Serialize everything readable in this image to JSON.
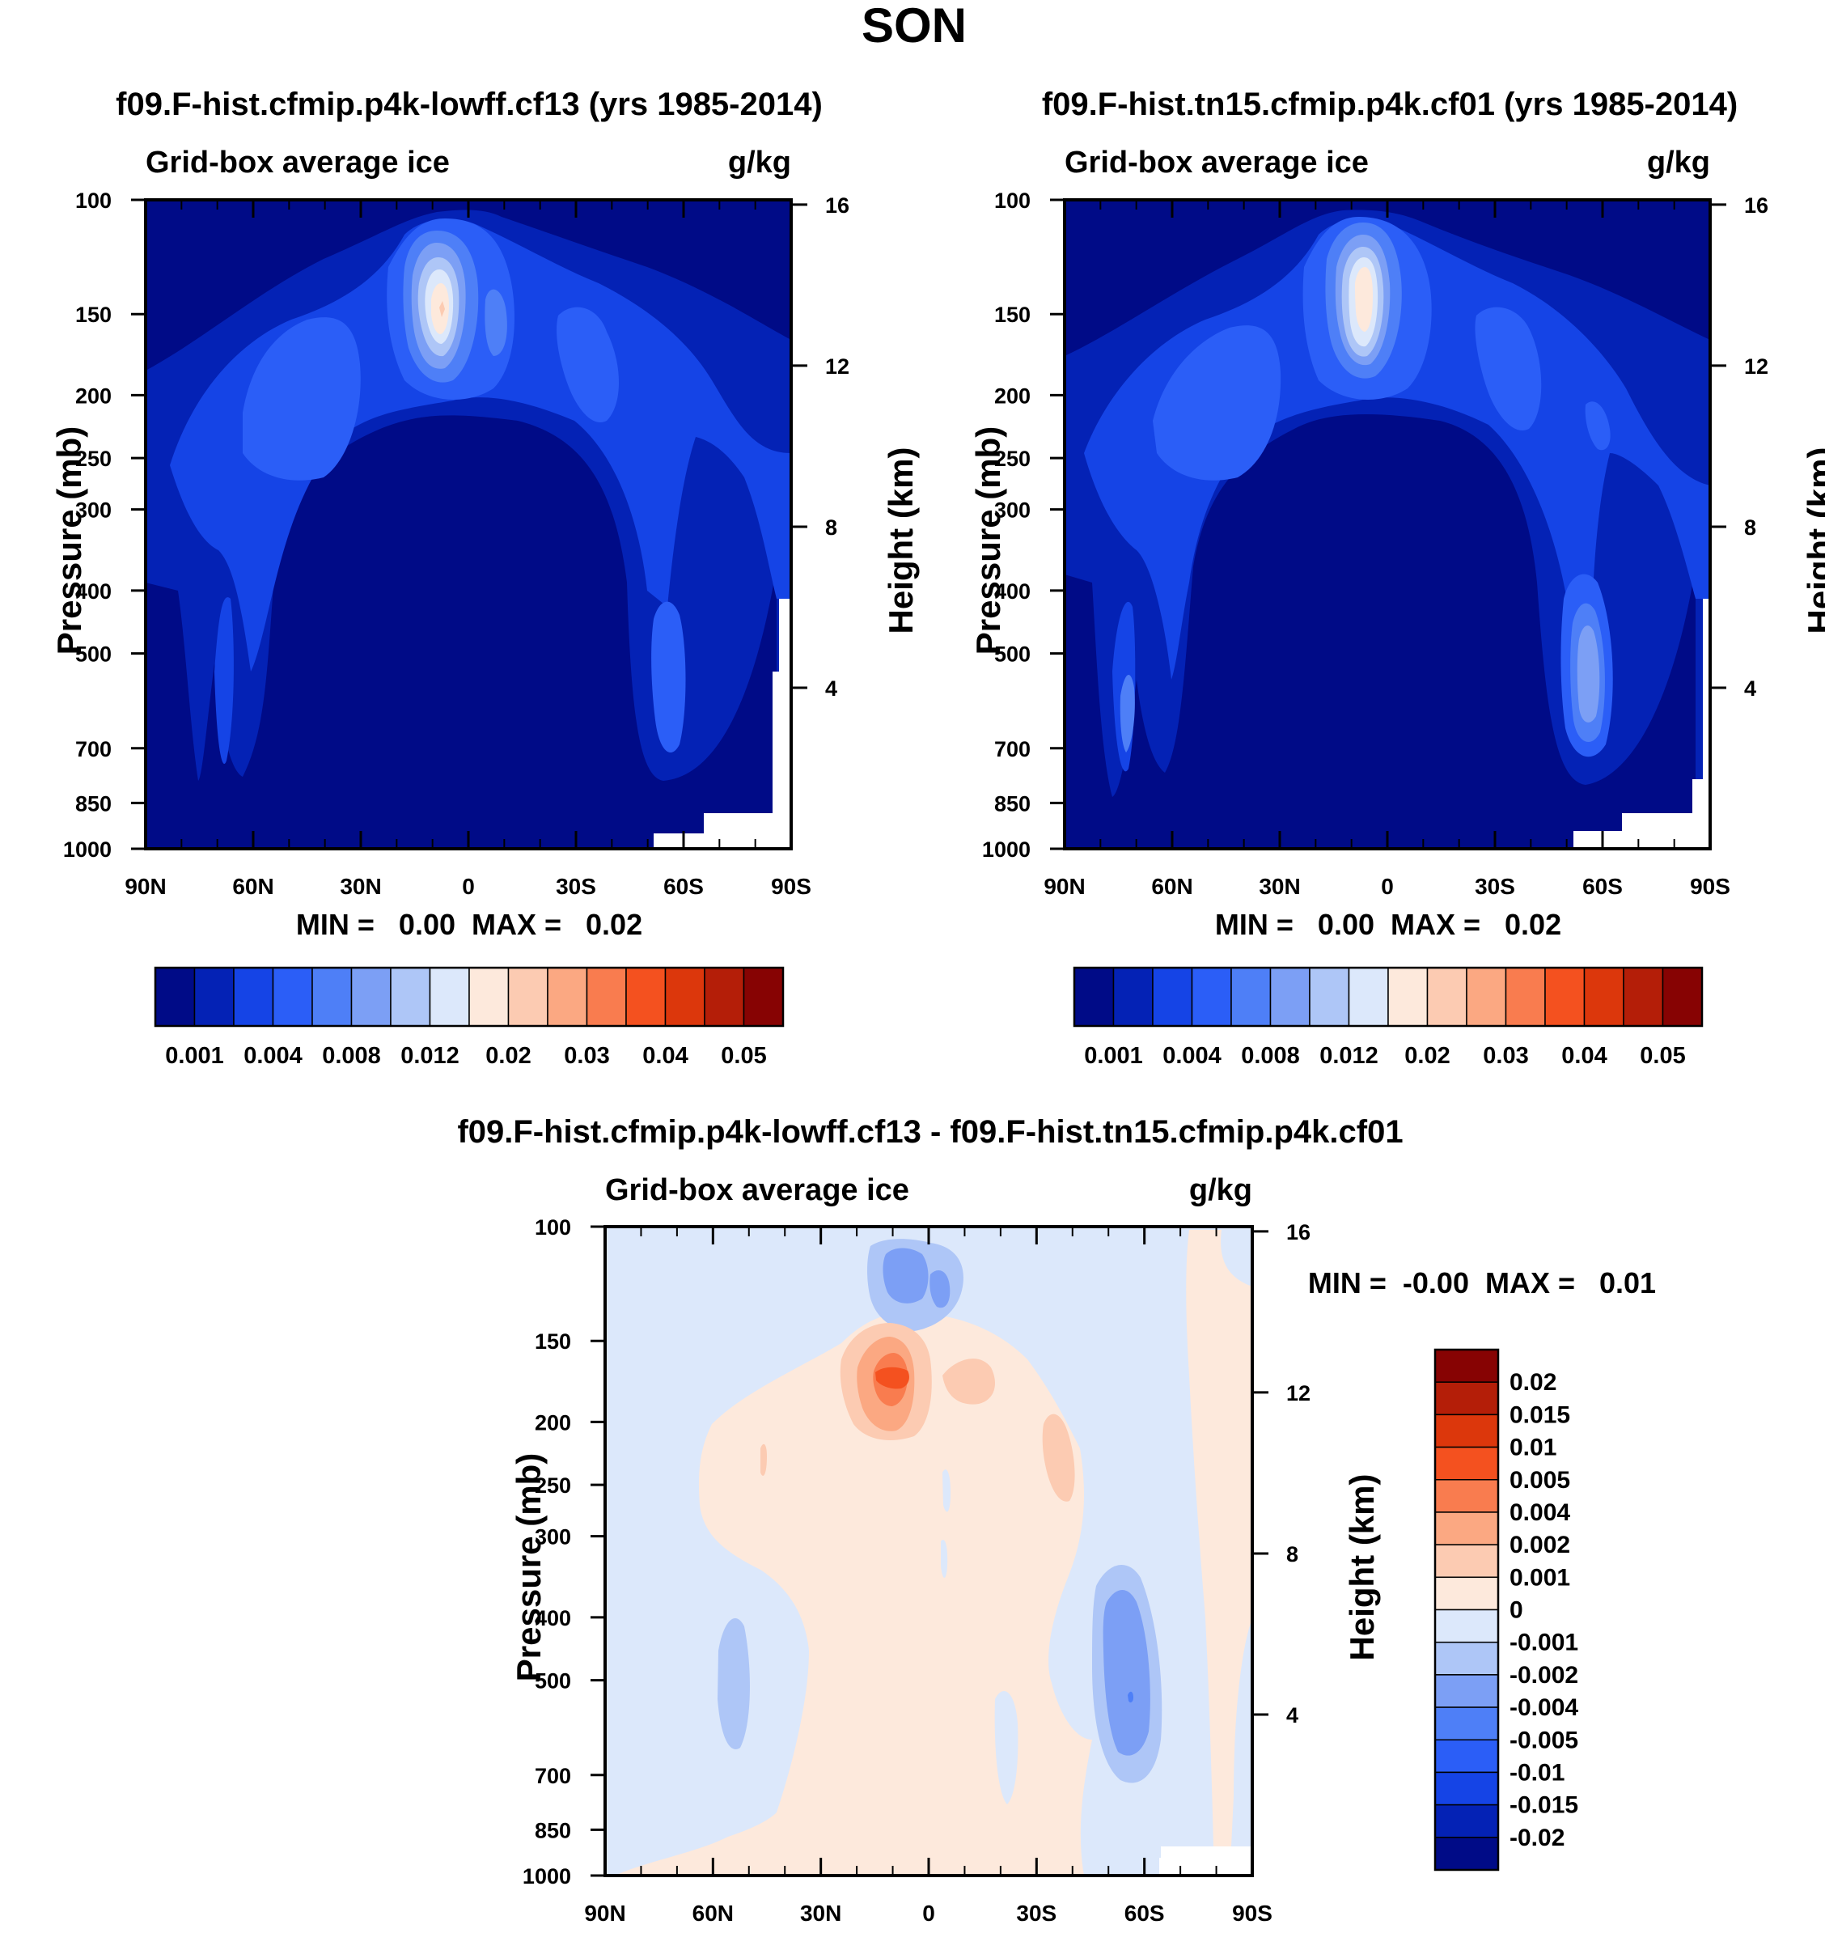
{
  "page_title": "SON",
  "colors": {
    "abs_levels": [
      "#000b87",
      "#0422b5",
      "#1544e6",
      "#2b5ef7",
      "#4e7ff7",
      "#7c9ff5",
      "#aec6f7",
      "#dce8fb",
      "#fde9dc",
      "#fccbb2",
      "#fba882",
      "#f97c4f",
      "#f4511f",
      "#dc370c",
      "#b41e08",
      "#870303"
    ],
    "diff_levels": [
      "#000b87",
      "#0422b5",
      "#1544e6",
      "#2b5ef7",
      "#4e7ff7",
      "#7c9ff5",
      "#aec6f7",
      "#dce8fb",
      "#fde9dc",
      "#fccbb2",
      "#fba882",
      "#f97c4f",
      "#f4511f",
      "#dc370c",
      "#b41e08",
      "#870303"
    ]
  },
  "chart_data": [
    {
      "type": "heatmap",
      "title": "f09.F-hist.cfmip.p4k-lowff.cf13 (yrs 1985-2014)",
      "left_label": "Grid-box average ice",
      "right_label": "g/kg",
      "ylabel": "Pressure (mb)",
      "y2label": "Height (km)",
      "x_ticks": [
        "90N",
        "60N",
        "30N",
        "0",
        "30S",
        "60S",
        "90S"
      ],
      "y_ticks": [
        "100",
        "150",
        "200",
        "250",
        "300",
        "400",
        "500",
        "700",
        "850",
        "1000"
      ],
      "y2_ticks": [
        "16",
        "12",
        "8",
        "4"
      ],
      "min_max": "MIN =   0.00  MAX =   0.02",
      "colorbar_labels": [
        "0.001",
        "0.004",
        "0.008",
        "0.012",
        "0.02",
        "0.03",
        "0.04",
        "0.05"
      ],
      "y_scale": "log",
      "ylim": [
        1000,
        100
      ]
    },
    {
      "type": "heatmap",
      "title": "f09.F-hist.tn15.cfmip.p4k.cf01 (yrs 1985-2014)",
      "left_label": "Grid-box average ice",
      "right_label": "g/kg",
      "ylabel": "Pressure (mb)",
      "y2label": "Height (km)",
      "x_ticks": [
        "90N",
        "60N",
        "30N",
        "0",
        "30S",
        "60S",
        "90S"
      ],
      "y_ticks": [
        "100",
        "150",
        "200",
        "250",
        "300",
        "400",
        "500",
        "700",
        "850",
        "1000"
      ],
      "y2_ticks": [
        "16",
        "12",
        "8",
        "4"
      ],
      "min_max": "MIN =   0.00  MAX =   0.02",
      "colorbar_labels": [
        "0.001",
        "0.004",
        "0.008",
        "0.012",
        "0.02",
        "0.03",
        "0.04",
        "0.05"
      ],
      "y_scale": "log",
      "ylim": [
        1000,
        100
      ]
    },
    {
      "type": "heatmap",
      "title": "f09.F-hist.cfmip.p4k-lowff.cf13 - f09.F-hist.tn15.cfmip.p4k.cf01",
      "left_label": "Grid-box average ice",
      "right_label": "g/kg",
      "ylabel": "Pressure (mb)",
      "y2label": "Height (km)",
      "x_ticks": [
        "90N",
        "60N",
        "30N",
        "0",
        "30S",
        "60S",
        "90S"
      ],
      "y_ticks": [
        "100",
        "150",
        "200",
        "250",
        "300",
        "400",
        "500",
        "700",
        "850",
        "1000"
      ],
      "y2_ticks": [
        "16",
        "12",
        "8",
        "4"
      ],
      "min_max": "MIN =  -0.00  MAX =   0.01",
      "colorbar_labels": [
        "0.02",
        "0.015",
        "0.01",
        "0.005",
        "0.004",
        "0.002",
        "0.001",
        "0",
        "-0.001",
        "-0.002",
        "-0.004",
        "-0.005",
        "-0.01",
        "-0.015",
        "-0.02"
      ],
      "y_scale": "log",
      "ylim": [
        1000,
        100
      ]
    }
  ]
}
